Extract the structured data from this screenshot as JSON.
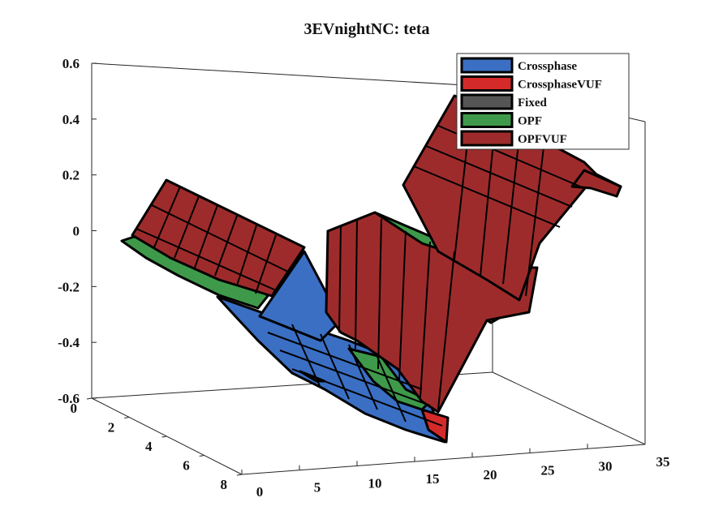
{
  "chart_data": {
    "type": "surface3d",
    "title": "3EVnightNC: teta",
    "xlabel": "",
    "ylabel": "",
    "zlabel": "",
    "x_ticks": [
      "0",
      "5",
      "10",
      "15",
      "20",
      "25",
      "30",
      "35"
    ],
    "y_ticks": [
      "0",
      "2",
      "4",
      "6",
      "8"
    ],
    "z_ticks": [
      "0.6",
      "0.4",
      "0.2",
      "0",
      "-0.2",
      "-0.4",
      "-0.6"
    ],
    "xlim": [
      0,
      35
    ],
    "ylim": [
      0,
      8
    ],
    "zlim": [
      -0.6,
      0.6
    ],
    "legend_position": "top-right",
    "grid": false,
    "series": [
      {
        "name": "Crossphase",
        "color": "#3a6fc4"
      },
      {
        "name": "CrossphaseVUF",
        "color": "#d42a2a"
      },
      {
        "name": "Fixed",
        "color": "#555555"
      },
      {
        "name": "OPF",
        "color": "#3e9a4a"
      },
      {
        "name": "OPFVUF",
        "color": "#9e2b2b"
      }
    ]
  }
}
